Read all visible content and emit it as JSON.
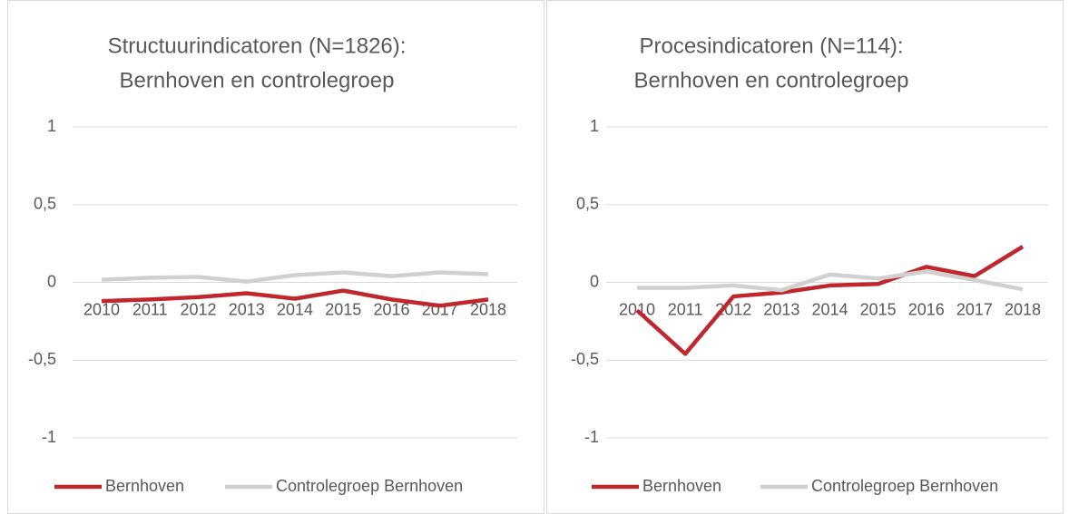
{
  "chart_data": [
    {
      "type": "line",
      "title": [
        "Structuurindicatoren (N=1826):",
        "Bernhoven en controlegroep"
      ],
      "categories": [
        "2010",
        "2011",
        "2012",
        "2013",
        "2014",
        "2015",
        "2016",
        "2017",
        "2018"
      ],
      "series": [
        {
          "name": "Bernhoven",
          "color": "#c0272d",
          "values": [
            -0.12,
            -0.11,
            -0.095,
            -0.07,
            -0.105,
            -0.053,
            -0.11,
            -0.15,
            -0.11
          ]
        },
        {
          "name": "Controlegroep Bernhoven",
          "color": "#d0d0d0",
          "values": [
            0.017,
            0.03,
            0.035,
            0.005,
            0.047,
            0.064,
            0.04,
            0.064,
            0.053
          ]
        }
      ],
      "ylim": [
        -1,
        1
      ],
      "yticks": [
        -1,
        {
          "value": -0.5,
          "label": "-0,5"
        },
        0,
        {
          "value": 0.5,
          "label": "0,5"
        },
        1
      ],
      "grid": true,
      "legend": "bottom"
    },
    {
      "type": "line",
      "title": [
        "Procesindicatoren (N=114):",
        "Bernhoven en controlegroep"
      ],
      "categories": [
        "2010",
        "2011",
        "2012",
        "2013",
        "2014",
        "2015",
        "2016",
        "2017",
        "2018"
      ],
      "series": [
        {
          "name": "Bernhoven",
          "color": "#c0272d",
          "values": [
            -0.18,
            -0.46,
            -0.09,
            -0.065,
            -0.02,
            -0.01,
            0.1,
            0.04,
            0.23
          ]
        },
        {
          "name": "Controlegroep Bernhoven",
          "color": "#d0d0d0",
          "values": [
            -0.035,
            -0.035,
            -0.02,
            -0.05,
            0.05,
            0.025,
            0.07,
            0.015,
            -0.045
          ]
        }
      ],
      "ylim": [
        -1,
        1
      ],
      "yticks": [
        -1,
        {
          "value": -0.5,
          "label": "-0,5"
        },
        0,
        {
          "value": 0.5,
          "label": "0,5"
        },
        1
      ],
      "grid": true,
      "legend": "bottom"
    }
  ]
}
